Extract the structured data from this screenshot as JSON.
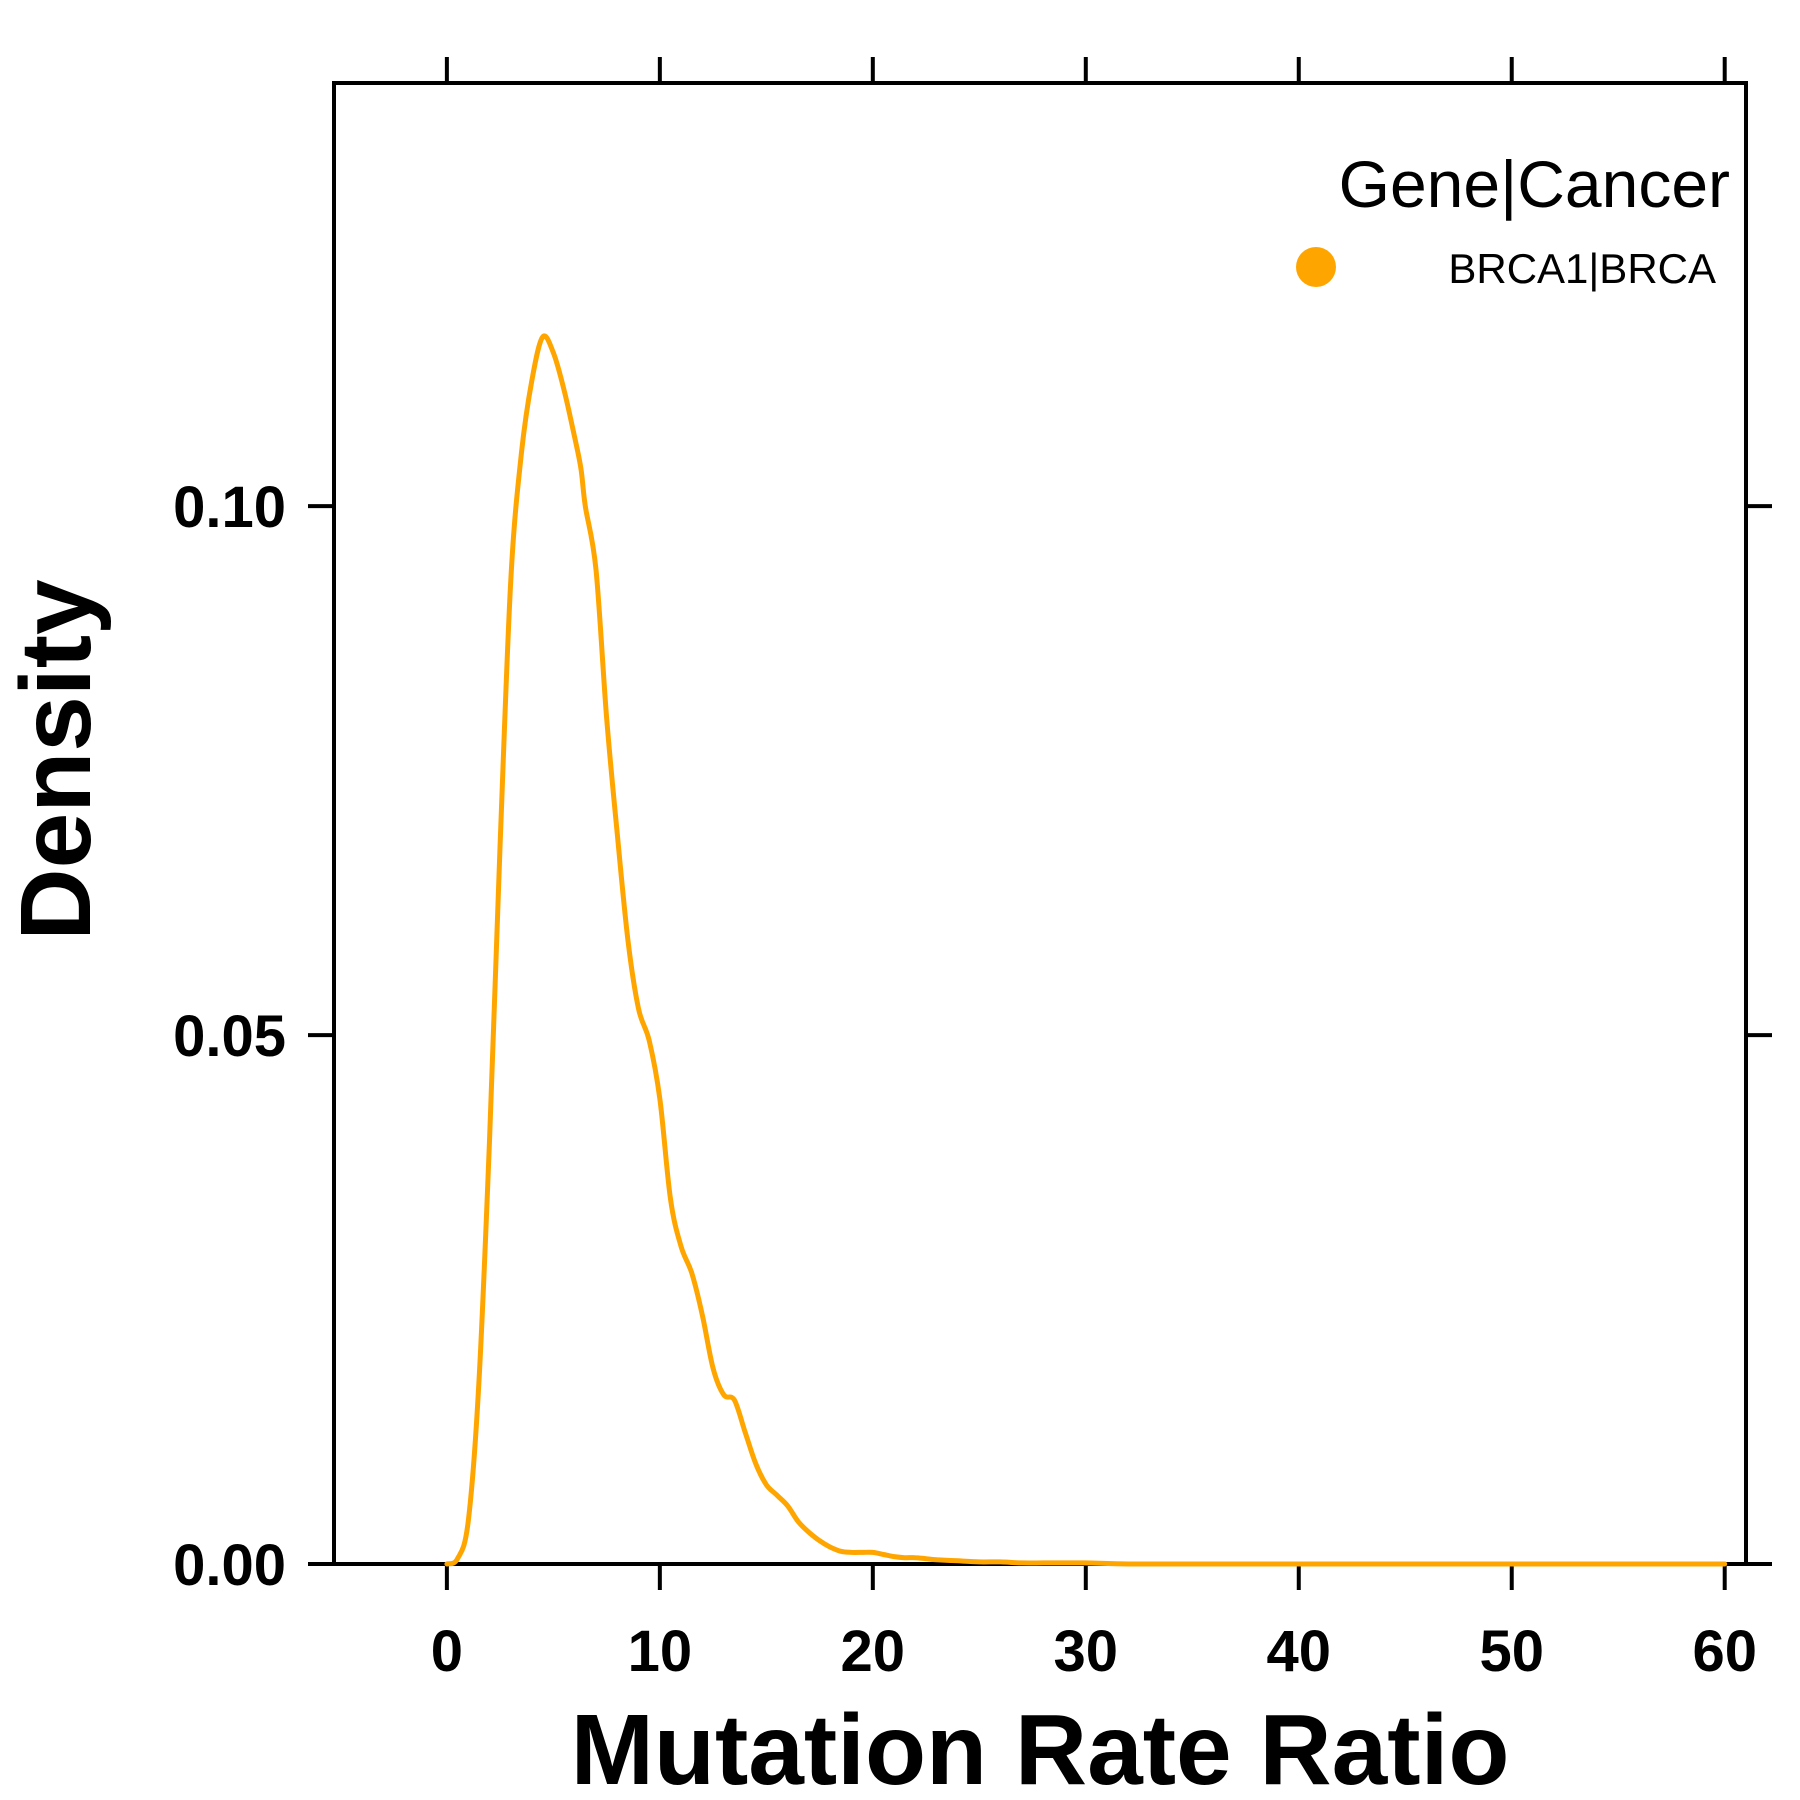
{
  "chart_data": {
    "type": "line",
    "xlabel": "Mutation Rate Ratio",
    "ylabel": "Density",
    "xlim": [
      -5.3,
      61.0
    ],
    "ylim": [
      0,
      0.14
    ],
    "x_ticks": [
      0,
      10,
      20,
      30,
      40,
      50,
      60
    ],
    "x_tick_labels": [
      "0",
      "10",
      "20",
      "30",
      "40",
      "50",
      "60"
    ],
    "y_ticks": [
      0,
      0.05,
      0.1
    ],
    "y_tick_labels": [
      "0.00",
      "0.05",
      "0.10"
    ],
    "grid": false,
    "legend": {
      "title": "Gene|Cancer",
      "position": "top-right",
      "items": [
        {
          "label": "BRCA1|BRCA",
          "color": "#FFA500"
        }
      ]
    },
    "series": [
      {
        "name": "BRCA1|BRCA",
        "color": "#FFA500",
        "x": [
          0.0,
          0.5,
          1.0,
          1.5,
          2.0,
          2.5,
          3.0,
          3.5,
          4.0,
          4.5,
          5.0,
          5.5,
          6.0,
          6.3,
          6.5,
          7.0,
          7.5,
          8.0,
          8.5,
          9.0,
          9.5,
          10.0,
          10.5,
          11.0,
          11.5,
          12.0,
          12.5,
          13.0,
          13.5,
          14.0,
          14.5,
          15.0,
          15.5,
          16.0,
          16.5,
          17.0,
          17.5,
          18.0,
          18.5,
          19.0,
          19.5,
          20.0,
          20.5,
          21.0,
          21.5,
          22.0,
          22.5,
          23.0,
          24.0,
          25.0,
          26.0,
          27.0,
          28.0,
          29.0,
          30.0,
          32.0,
          35.0,
          38.0,
          40.0,
          45.0,
          50.0,
          55.0,
          60.0
        ],
        "y": [
          0.0,
          0.0005,
          0.004,
          0.017,
          0.04,
          0.068,
          0.093,
          0.105,
          0.112,
          0.116,
          0.1145,
          0.111,
          0.1065,
          0.1035,
          0.1,
          0.094,
          0.08,
          0.069,
          0.059,
          0.0525,
          0.0495,
          0.044,
          0.0345,
          0.03,
          0.0275,
          0.0235,
          0.0185,
          0.016,
          0.0155,
          0.0125,
          0.0095,
          0.0075,
          0.0065,
          0.0055,
          0.004,
          0.003,
          0.0022,
          0.0016,
          0.0012,
          0.0011,
          0.0011,
          0.0011,
          0.0009,
          0.0007,
          0.0006,
          0.0006,
          0.0005,
          0.0004,
          0.0003,
          0.0002,
          0.0002,
          0.0001,
          0.0001,
          0.0001,
          0.0001,
          0.0,
          0.0,
          0.0,
          0.0,
          0.0,
          0.0,
          0.0,
          0.0
        ]
      }
    ]
  }
}
